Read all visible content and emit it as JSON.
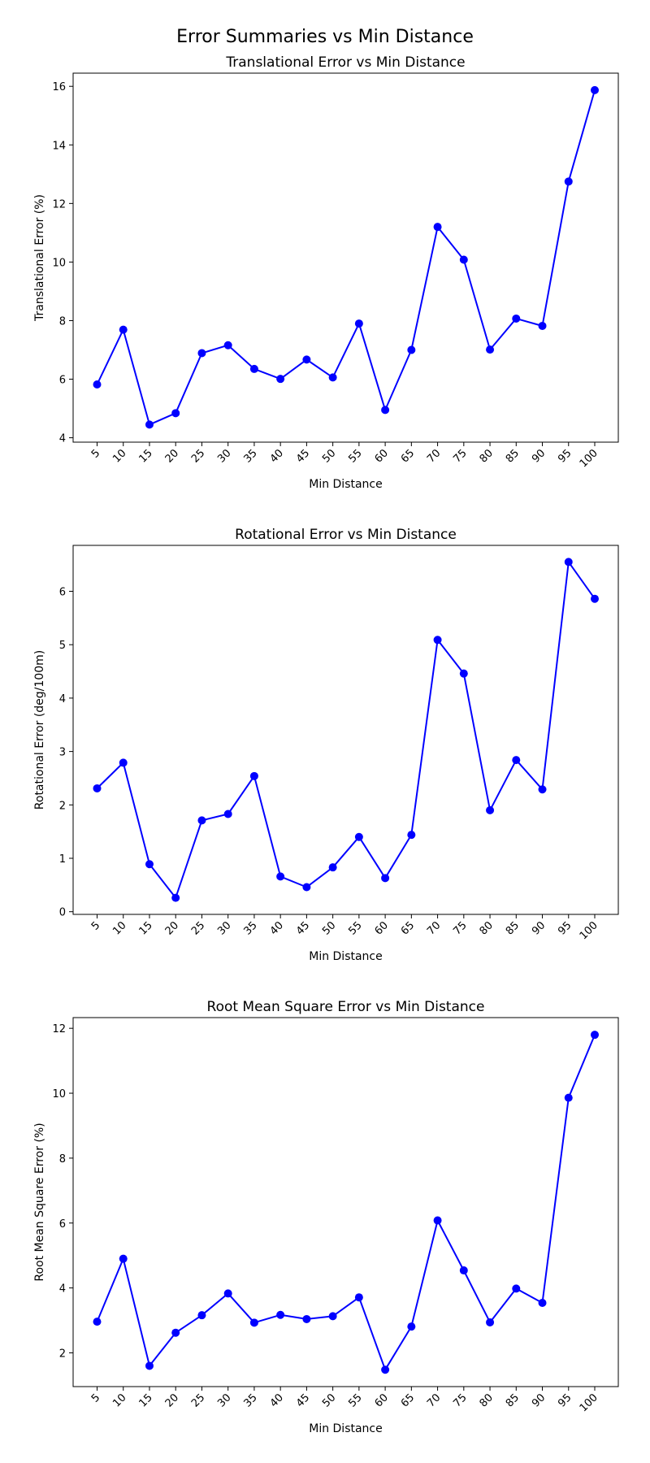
{
  "figure_title": "Error Summaries vs Min Distance",
  "chart_data": [
    {
      "type": "line",
      "title": "Translational Error vs Min Distance",
      "xlabel": "Min Distance",
      "ylabel": "Translational Error (%)",
      "categories": [
        "5",
        "10",
        "15",
        "20",
        "25",
        "30",
        "35",
        "40",
        "45",
        "50",
        "55",
        "60",
        "65",
        "70",
        "75",
        "80",
        "85",
        "90",
        "95",
        "100"
      ],
      "values": [
        5.82,
        7.69,
        4.45,
        4.84,
        6.89,
        7.16,
        6.35,
        6.01,
        6.67,
        6.06,
        7.9,
        4.95,
        7.0,
        11.2,
        10.08,
        7.01,
        8.07,
        7.82,
        12.75,
        15.87
      ],
      "yticks": [
        4,
        6,
        8,
        10,
        12,
        14,
        16
      ],
      "ylim": [
        3.85,
        16.45
      ],
      "marker": "circle",
      "color": "#0000ff",
      "grid": false
    },
    {
      "type": "line",
      "title": "Rotational Error vs Min Distance",
      "xlabel": "Min Distance",
      "ylabel": "Rotational Error (deg/100m)",
      "categories": [
        "5",
        "10",
        "15",
        "20",
        "25",
        "30",
        "35",
        "40",
        "45",
        "50",
        "55",
        "60",
        "65",
        "70",
        "75",
        "80",
        "85",
        "90",
        "95",
        "100"
      ],
      "values": [
        2.31,
        2.79,
        0.89,
        0.26,
        1.71,
        1.83,
        2.54,
        0.66,
        0.46,
        0.83,
        1.4,
        0.63,
        1.44,
        5.09,
        4.46,
        1.9,
        2.84,
        2.29,
        6.55,
        5.86
      ],
      "yticks": [
        0,
        1,
        2,
        3,
        4,
        5,
        6
      ],
      "ylim": [
        -0.05,
        6.86
      ],
      "marker": "circle",
      "color": "#0000ff",
      "grid": false
    },
    {
      "type": "line",
      "title": "Root Mean Square Error vs Min Distance",
      "xlabel": "Min Distance",
      "ylabel": "Root Mean Square Error (%)",
      "categories": [
        "5",
        "10",
        "15",
        "20",
        "25",
        "30",
        "35",
        "40",
        "45",
        "50",
        "55",
        "60",
        "65",
        "70",
        "75",
        "80",
        "85",
        "90",
        "95",
        "100"
      ],
      "values": [
        2.96,
        4.9,
        1.6,
        2.62,
        3.16,
        3.83,
        2.93,
        3.17,
        3.04,
        3.13,
        3.71,
        1.48,
        2.81,
        6.08,
        4.54,
        2.94,
        3.98,
        3.54,
        9.86,
        11.8
      ],
      "yticks": [
        2,
        4,
        6,
        8,
        10,
        12
      ],
      "ylim": [
        0.96,
        12.33
      ],
      "marker": "circle",
      "color": "#0000ff",
      "grid": false
    }
  ]
}
